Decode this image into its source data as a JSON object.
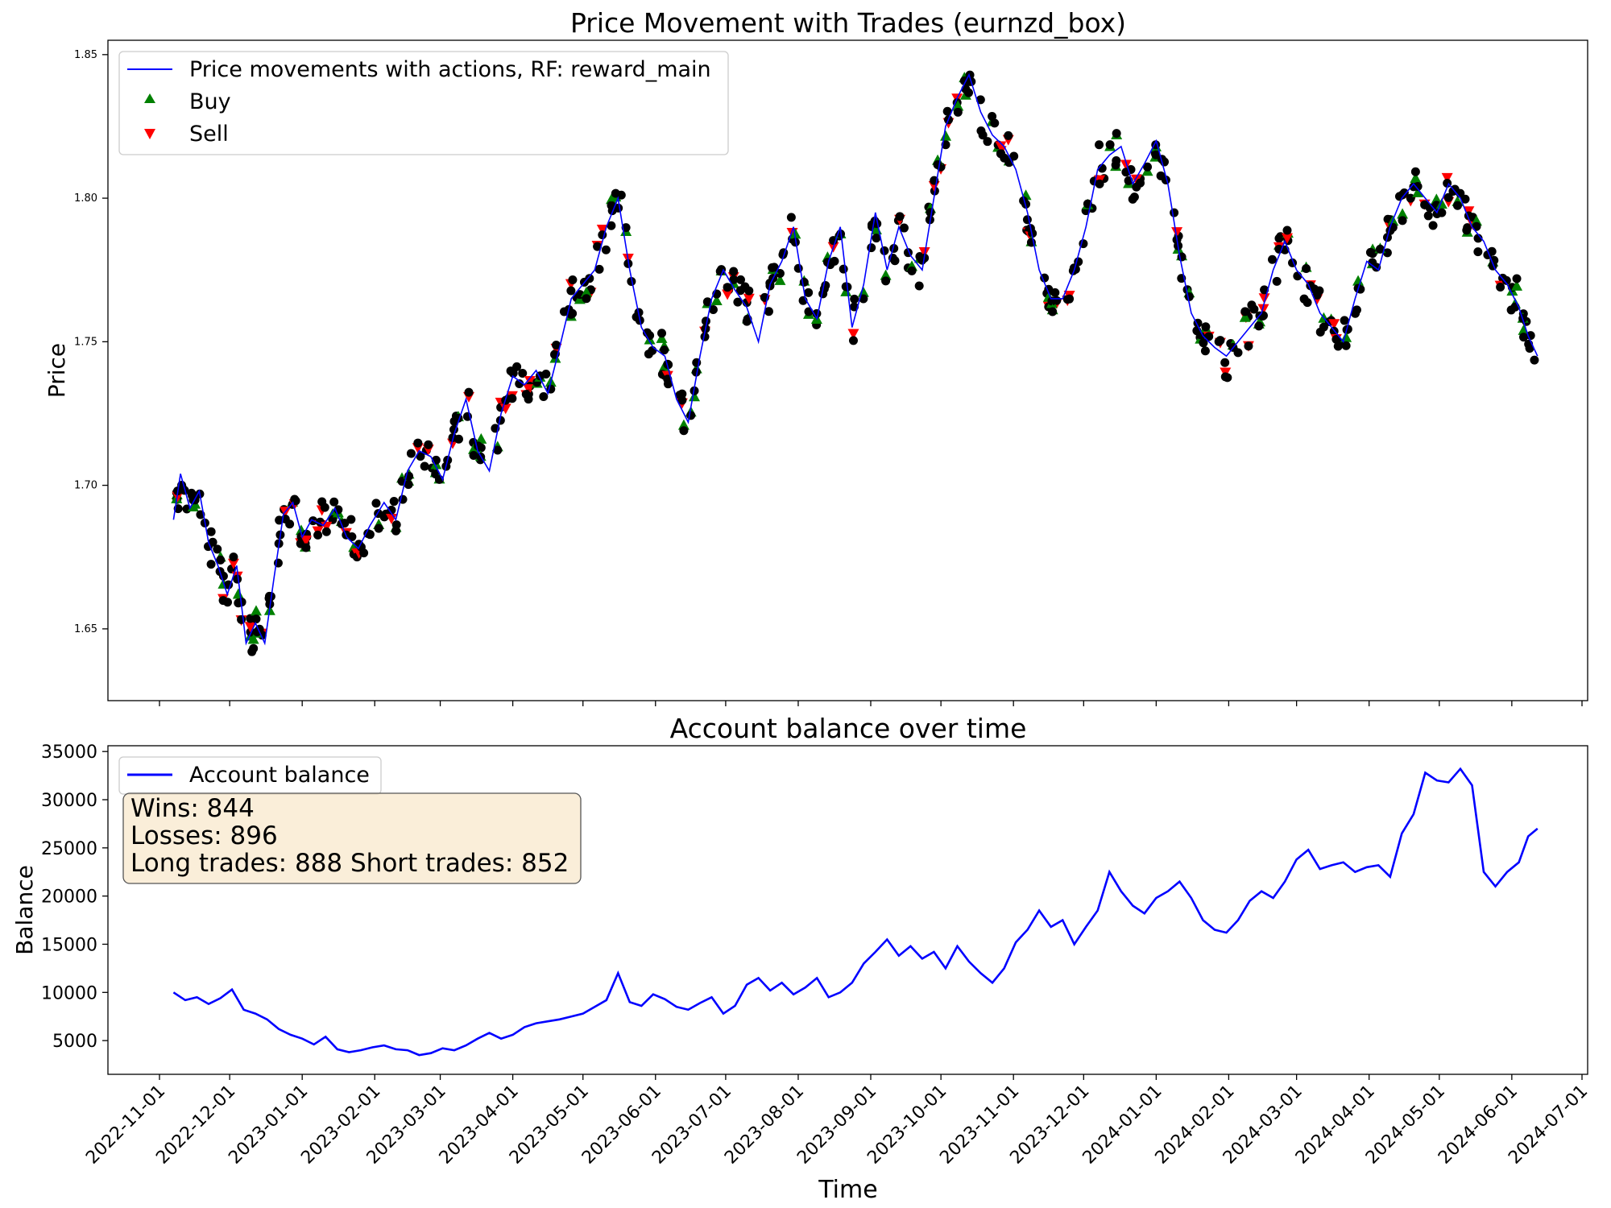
{
  "chart_data": [
    {
      "type": "line",
      "title": "Price Movement with Trades (eurnzd_box)",
      "xlabel": "",
      "ylabel": "Price",
      "ylim": [
        1.625,
        1.855
      ],
      "yticks": [
        "1.65",
        "1.70",
        "1.75",
        "1.80",
        "1.85"
      ],
      "grid": false,
      "legend_position": "upper-left",
      "legend": [
        {
          "label": "Price movements with actions, RF: reward_main",
          "kind": "line",
          "color": "#0000ff"
        },
        {
          "label": "Buy",
          "kind": "marker-up",
          "color": "#008000"
        },
        {
          "label": "Sell",
          "kind": "marker-down",
          "color": "#ff0000"
        }
      ],
      "series": [
        {
          "name": "Price movements with actions, RF: reward_main",
          "color": "#0000ff",
          "x": [
            "2022-11-07",
            "2022-11-10",
            "2022-11-14",
            "2022-11-18",
            "2022-11-22",
            "2022-11-26",
            "2022-11-30",
            "2022-12-04",
            "2022-12-08",
            "2022-12-12",
            "2022-12-16",
            "2022-12-20",
            "2022-12-24",
            "2022-12-28",
            "2023-01-01",
            "2023-01-05",
            "2023-01-10",
            "2023-01-15",
            "2023-01-20",
            "2023-01-25",
            "2023-01-30",
            "2023-02-05",
            "2023-02-10",
            "2023-02-15",
            "2023-02-20",
            "2023-02-25",
            "2023-03-02",
            "2023-03-07",
            "2023-03-12",
            "2023-03-17",
            "2023-03-22",
            "2023-03-27",
            "2023-04-01",
            "2023-04-06",
            "2023-04-11",
            "2023-04-16",
            "2023-04-21",
            "2023-04-26",
            "2023-05-01",
            "2023-05-06",
            "2023-05-11",
            "2023-05-16",
            "2023-05-21",
            "2023-05-26",
            "2023-05-31",
            "2023-06-05",
            "2023-06-10",
            "2023-06-15",
            "2023-06-20",
            "2023-06-25",
            "2023-06-30",
            "2023-07-05",
            "2023-07-10",
            "2023-07-15",
            "2023-07-20",
            "2023-07-25",
            "2023-07-30",
            "2023-08-04",
            "2023-08-09",
            "2023-08-14",
            "2023-08-19",
            "2023-08-24",
            "2023-08-29",
            "2023-09-03",
            "2023-09-08",
            "2023-09-13",
            "2023-09-18",
            "2023-09-23",
            "2023-09-28",
            "2023-10-03",
            "2023-10-08",
            "2023-10-13",
            "2023-10-18",
            "2023-10-23",
            "2023-10-28",
            "2023-11-02",
            "2023-11-07",
            "2023-11-12",
            "2023-11-17",
            "2023-11-22",
            "2023-11-27",
            "2023-12-02",
            "2023-12-07",
            "2023-12-12",
            "2023-12-17",
            "2023-12-22",
            "2023-12-27",
            "2024-01-01",
            "2024-01-06",
            "2024-01-11",
            "2024-01-16",
            "2024-01-21",
            "2024-01-26",
            "2024-01-31",
            "2024-02-05",
            "2024-02-10",
            "2024-02-15",
            "2024-02-20",
            "2024-02-25",
            "2024-03-01",
            "2024-03-06",
            "2024-03-11",
            "2024-03-16",
            "2024-03-21",
            "2024-03-26",
            "2024-03-31",
            "2024-04-05",
            "2024-04-10",
            "2024-04-15",
            "2024-04-20",
            "2024-04-25",
            "2024-04-30",
            "2024-05-05",
            "2024-05-10",
            "2024-05-15",
            "2024-05-20",
            "2024-05-25",
            "2024-05-30",
            "2024-06-04",
            "2024-06-08",
            "2024-06-12"
          ],
          "values": [
            1.688,
            1.704,
            1.692,
            1.698,
            1.68,
            1.672,
            1.662,
            1.672,
            1.645,
            1.652,
            1.645,
            1.668,
            1.69,
            1.694,
            1.682,
            1.688,
            1.686,
            1.692,
            1.682,
            1.678,
            1.686,
            1.694,
            1.688,
            1.705,
            1.712,
            1.71,
            1.702,
            1.718,
            1.73,
            1.712,
            1.705,
            1.725,
            1.738,
            1.735,
            1.74,
            1.732,
            1.748,
            1.765,
            1.77,
            1.775,
            1.79,
            1.8,
            1.775,
            1.755,
            1.748,
            1.745,
            1.73,
            1.722,
            1.745,
            1.765,
            1.775,
            1.768,
            1.762,
            1.75,
            1.77,
            1.778,
            1.79,
            1.765,
            1.758,
            1.778,
            1.79,
            1.755,
            1.77,
            1.795,
            1.775,
            1.79,
            1.78,
            1.775,
            1.8,
            1.825,
            1.835,
            1.843,
            1.83,
            1.822,
            1.818,
            1.81,
            1.795,
            1.775,
            1.765,
            1.765,
            1.775,
            1.79,
            1.81,
            1.815,
            1.818,
            1.805,
            1.812,
            1.82,
            1.805,
            1.78,
            1.76,
            1.752,
            1.748,
            1.745,
            1.75,
            1.755,
            1.76,
            1.775,
            1.785,
            1.775,
            1.77,
            1.76,
            1.755,
            1.75,
            1.765,
            1.778,
            1.775,
            1.79,
            1.8,
            1.805,
            1.8,
            1.795,
            1.805,
            1.8,
            1.79,
            1.785,
            1.775,
            1.77,
            1.762,
            1.752,
            1.745
          ]
        }
      ],
      "trade_marker_colors": {
        "buy": "#008000",
        "sell": "#ff0000",
        "action": "#000000"
      }
    },
    {
      "type": "line",
      "title": "Account balance over time",
      "xlabel": "Time",
      "ylabel": "Balance",
      "ylim": [
        1500,
        35600
      ],
      "yticks": [
        "5000",
        "10000",
        "15000",
        "20000",
        "25000",
        "30000",
        "35000"
      ],
      "grid": false,
      "legend_position": "upper-left",
      "legend": [
        {
          "label": "Account balance",
          "kind": "line",
          "color": "#0000ff"
        }
      ],
      "xticks": [
        "2022-11-01",
        "2022-12-01",
        "2023-01-01",
        "2023-02-01",
        "2023-03-01",
        "2023-04-01",
        "2023-05-01",
        "2023-06-01",
        "2023-07-01",
        "2023-08-01",
        "2023-09-01",
        "2023-10-01",
        "2023-11-01",
        "2023-12-01",
        "2024-01-01",
        "2024-02-01",
        "2024-03-01",
        "2024-04-01",
        "2024-05-01",
        "2024-06-01",
        "2024-07-01"
      ],
      "series": [
        {
          "name": "Account balance",
          "color": "#0000ff",
          "x": [
            "2022-11-07",
            "2022-11-12",
            "2022-11-17",
            "2022-11-22",
            "2022-11-27",
            "2022-12-02",
            "2022-12-07",
            "2022-12-12",
            "2022-12-17",
            "2022-12-22",
            "2022-12-27",
            "2023-01-01",
            "2023-01-06",
            "2023-01-11",
            "2023-01-16",
            "2023-01-21",
            "2023-01-26",
            "2023-01-31",
            "2023-02-05",
            "2023-02-10",
            "2023-02-15",
            "2023-02-20",
            "2023-02-25",
            "2023-03-02",
            "2023-03-07",
            "2023-03-12",
            "2023-03-17",
            "2023-03-22",
            "2023-03-27",
            "2023-04-01",
            "2023-04-06",
            "2023-04-11",
            "2023-04-16",
            "2023-04-21",
            "2023-04-26",
            "2023-05-01",
            "2023-05-06",
            "2023-05-11",
            "2023-05-16",
            "2023-05-21",
            "2023-05-26",
            "2023-05-31",
            "2023-06-05",
            "2023-06-10",
            "2023-06-15",
            "2023-06-20",
            "2023-06-25",
            "2023-06-30",
            "2023-07-05",
            "2023-07-10",
            "2023-07-15",
            "2023-07-20",
            "2023-07-25",
            "2023-07-30",
            "2023-08-04",
            "2023-08-09",
            "2023-08-14",
            "2023-08-19",
            "2023-08-24",
            "2023-08-29",
            "2023-09-03",
            "2023-09-08",
            "2023-09-13",
            "2023-09-18",
            "2023-09-23",
            "2023-09-28",
            "2023-10-03",
            "2023-10-08",
            "2023-10-13",
            "2023-10-18",
            "2023-10-23",
            "2023-10-28",
            "2023-11-02",
            "2023-11-07",
            "2023-11-12",
            "2023-11-17",
            "2023-11-22",
            "2023-11-27",
            "2023-12-02",
            "2023-12-07",
            "2023-12-12",
            "2023-12-17",
            "2023-12-22",
            "2023-12-27",
            "2024-01-01",
            "2024-01-06",
            "2024-01-11",
            "2024-01-16",
            "2024-01-21",
            "2024-01-26",
            "2024-01-31",
            "2024-02-05",
            "2024-02-10",
            "2024-02-15",
            "2024-02-20",
            "2024-02-25",
            "2024-03-01",
            "2024-03-06",
            "2024-03-11",
            "2024-03-16",
            "2024-03-21",
            "2024-03-26",
            "2024-03-31",
            "2024-04-05",
            "2024-04-10",
            "2024-04-15",
            "2024-04-20",
            "2024-04-25",
            "2024-04-30",
            "2024-05-05",
            "2024-05-10",
            "2024-05-15",
            "2024-05-20",
            "2024-05-25",
            "2024-05-30",
            "2024-06-04",
            "2024-06-08",
            "2024-06-12"
          ],
          "values": [
            10000,
            9200,
            9500,
            8800,
            9400,
            10300,
            8200,
            7800,
            7200,
            6200,
            5600,
            5200,
            4600,
            5400,
            4100,
            3800,
            4000,
            4300,
            4500,
            4100,
            4000,
            3500,
            3700,
            4200,
            4000,
            4500,
            5200,
            5800,
            5200,
            5600,
            6400,
            6800,
            7000,
            7200,
            7500,
            7800,
            8500,
            9200,
            12000,
            9000,
            8600,
            9800,
            9300,
            8500,
            8200,
            8900,
            9500,
            7800,
            8600,
            10800,
            11500,
            10200,
            11000,
            9800,
            10500,
            11500,
            9500,
            10000,
            11000,
            13000,
            14200,
            15500,
            13800,
            14800,
            13500,
            14200,
            12500,
            14800,
            13200,
            12000,
            11000,
            12500,
            15200,
            16500,
            18500,
            16800,
            17500,
            15000,
            16800,
            18500,
            22500,
            20500,
            19000,
            18200,
            19800,
            20500,
            21500,
            19800,
            17500,
            16500,
            16200,
            17500,
            19500,
            20500,
            19800,
            21500,
            23800,
            24800,
            22800,
            23200,
            23500,
            22500,
            23000,
            23200,
            22000,
            26500,
            28500,
            32800,
            32000,
            31800,
            33200,
            31500,
            22500,
            21000,
            22500,
            23500,
            26200,
            27000
          ]
        }
      ],
      "stats_box": {
        "wins": "Wins: 844",
        "losses": "Losses: 896",
        "trades": "Long trades: 888 Short trades: 852"
      }
    }
  ]
}
